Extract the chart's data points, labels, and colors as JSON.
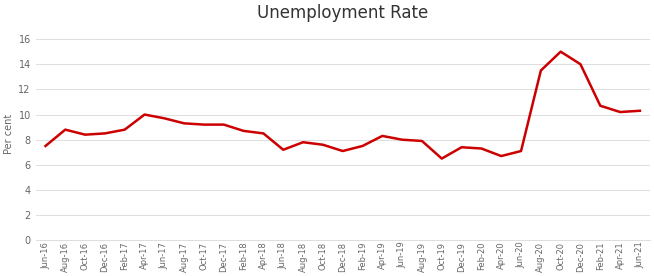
{
  "title": "Unemployment Rate",
  "ylabel": "Per cent",
  "line_color": "#cc0000",
  "line_width": 1.8,
  "background_color": "#ffffff",
  "ylim": [
    0,
    17
  ],
  "yticks": [
    0,
    2,
    4,
    6,
    8,
    10,
    12,
    14,
    16
  ],
  "labels": [
    "Jun-16",
    "Aug-16",
    "Oct-16",
    "Dec-16",
    "Feb-17",
    "Apr-17",
    "Jun-17",
    "Aug-17",
    "Oct-17",
    "Dec-17",
    "Feb-18",
    "Apr-18",
    "Jun-18",
    "Aug-18",
    "Oct-18",
    "Dec-18",
    "Feb-19",
    "Apr-19",
    "Jun-19",
    "Aug-19",
    "Oct-19",
    "Dec-19",
    "Feb-20",
    "Apr-20",
    "Jun-20",
    "Aug-20",
    "Oct-20",
    "Dec-20",
    "Feb-21",
    "Apr-21",
    "Jun-21"
  ],
  "values": [
    7.5,
    8.8,
    8.4,
    8.5,
    8.8,
    10.0,
    9.7,
    9.3,
    9.2,
    9.2,
    8.7,
    8.5,
    7.2,
    7.8,
    7.6,
    7.1,
    7.5,
    8.3,
    8.0,
    7.9,
    6.5,
    7.4,
    7.3,
    6.7,
    7.1,
    13.5,
    15.0,
    14.0,
    10.7,
    10.2,
    10.3
  ],
  "grid_color": "#d0d0d0",
  "grid_linewidth": 0.5,
  "tick_labelsize": 6,
  "ylabel_fontsize": 7,
  "title_fontsize": 12
}
